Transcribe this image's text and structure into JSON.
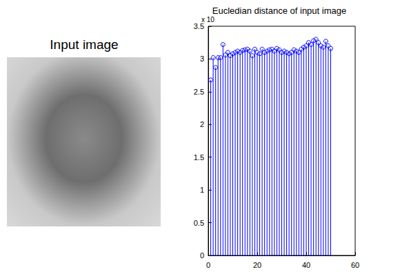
{
  "image": {
    "title": "Input image"
  },
  "chart_data": {
    "type": "stem",
    "title": "Eucledian distance of input image",
    "annotation": "x 10",
    "x": [
      1,
      2,
      3,
      4,
      5,
      6,
      7,
      8,
      9,
      10,
      11,
      12,
      13,
      14,
      15,
      16,
      17,
      18,
      19,
      20,
      21,
      22,
      23,
      24,
      25,
      26,
      27,
      28,
      29,
      30,
      31,
      32,
      33,
      34,
      35,
      36,
      37,
      38,
      39,
      40,
      41,
      42,
      43,
      44,
      45,
      46,
      47,
      48,
      49,
      50
    ],
    "values": [
      2.68,
      3.02,
      2.87,
      3.02,
      3.02,
      3.22,
      3.06,
      3.1,
      3.05,
      3.08,
      3.1,
      3.12,
      3.1,
      3.13,
      3.14,
      3.15,
      3.12,
      3.05,
      3.15,
      3.1,
      3.08,
      3.15,
      3.1,
      3.12,
      3.14,
      3.15,
      3.12,
      3.16,
      3.14,
      3.1,
      3.12,
      3.1,
      3.08,
      3.1,
      3.14,
      3.12,
      3.1,
      3.15,
      3.18,
      3.2,
      3.25,
      3.22,
      3.28,
      3.3,
      3.25,
      3.2,
      3.18,
      3.27,
      3.2,
      3.16
    ],
    "color": "#0000ff",
    "marker": "circle",
    "line_style": "solid",
    "xlim": [
      0,
      60
    ],
    "xticks": [
      0,
      20,
      40,
      60
    ],
    "ylim": [
      0,
      3.5
    ],
    "yticks": [
      0,
      0.5,
      1,
      1.5,
      2,
      2.5,
      3,
      3.5
    ],
    "grid": false
  }
}
